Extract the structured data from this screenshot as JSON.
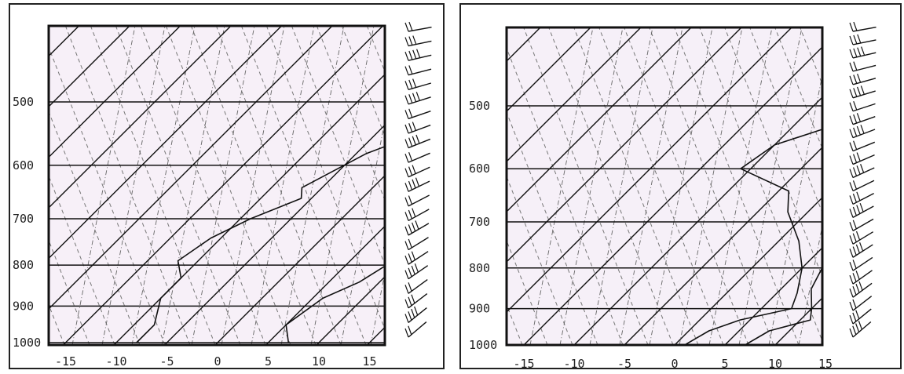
{
  "chart_data": [
    {
      "type": "skew-t",
      "title": "",
      "xlabel": "",
      "ylabel": "",
      "x_ticks": [
        -15,
        -10,
        -5,
        0,
        5,
        10,
        15
      ],
      "x_tick_labels": [
        "-15",
        "-10",
        "-5",
        "0",
        "5",
        "10",
        "15"
      ],
      "y_ticks": [
        500,
        600,
        700,
        800,
        900,
        1000
      ],
      "y_tick_labels": [
        "500",
        "600",
        "700",
        "800",
        "900",
        "1000"
      ],
      "xlim": [
        -17.5,
        17
      ],
      "ylim_hpa": [
        1000,
        400
      ],
      "y_scale": "log",
      "skew": "isotherms slanted 45 degrees",
      "series": [
        {
          "role": "temperature",
          "points": [
            [
              -1,
              400
            ],
            [
              0,
              440
            ],
            [
              1,
              470
            ],
            [
              2,
              500
            ],
            [
              3,
              540
            ],
            [
              4,
              560
            ],
            [
              3,
              600
            ],
            [
              5,
              640
            ],
            [
              6,
              700
            ],
            [
              7,
              760
            ],
            [
              9,
              800
            ],
            [
              8,
              840
            ],
            [
              6,
              880
            ],
            [
              5,
              950
            ],
            [
              7,
              1000
            ]
          ]
        },
        {
          "role": "dewpoint",
          "points": [
            [
              -6,
              400
            ],
            [
              -4,
              440
            ],
            [
              -3,
              470
            ],
            [
              -5,
              500
            ],
            [
              -4,
              520
            ],
            [
              -2,
              560
            ],
            [
              -4,
              580
            ],
            [
              -7,
              640
            ],
            [
              -6,
              660
            ],
            [
              -9,
              700
            ],
            [
              -11,
              740
            ],
            [
              -12,
              790
            ],
            [
              -10,
              830
            ],
            [
              -10,
              880
            ],
            [
              -8,
              950
            ],
            [
              -8,
              1000
            ]
          ]
        }
      ],
      "wind_barb_count": 22
    },
    {
      "type": "skew-t",
      "title": "",
      "xlabel": "",
      "ylabel": "",
      "x_ticks": [
        -15,
        -10,
        -5,
        0,
        5,
        10,
        15
      ],
      "x_tick_labels": [
        "-15",
        "-10",
        "-5",
        "0",
        "5",
        "10",
        "15"
      ],
      "y_ticks": [
        500,
        600,
        700,
        800,
        900,
        1000
      ],
      "y_tick_labels": [
        "500",
        "600",
        "700",
        "800",
        "900",
        "1000"
      ],
      "xlim": [
        -17.5,
        15
      ],
      "ylim_hpa": [
        1000,
        400
      ],
      "y_scale": "log",
      "skew": "isotherms slanted 45 degrees",
      "series": [
        {
          "role": "temperature",
          "points": [
            [
              -5,
              400
            ],
            [
              -3,
              450
            ],
            [
              -2,
              500
            ],
            [
              -1,
              550
            ],
            [
              0,
              600
            ],
            [
              1,
              640
            ],
            [
              2,
              680
            ],
            [
              4,
              720
            ],
            [
              6,
              760
            ],
            [
              7,
              800
            ],
            [
              8,
              850
            ],
            [
              10,
              900
            ],
            [
              11,
              930
            ],
            [
              8,
              960
            ],
            [
              7,
              1000
            ]
          ]
        },
        {
          "role": "dewpoint",
          "points": [
            [
              -15,
              400
            ],
            [
              -11,
              460
            ],
            [
              -2,
              500
            ],
            [
              -10,
              560
            ],
            [
              -11,
              600
            ],
            [
              -4,
              640
            ],
            [
              -2,
              680
            ],
            [
              2,
              740
            ],
            [
              5,
              800
            ],
            [
              7,
              860
            ],
            [
              8,
              900
            ],
            [
              4,
              930
            ],
            [
              2,
              960
            ],
            [
              1,
              1000
            ]
          ]
        }
      ],
      "wind_barb_count": 24
    }
  ]
}
